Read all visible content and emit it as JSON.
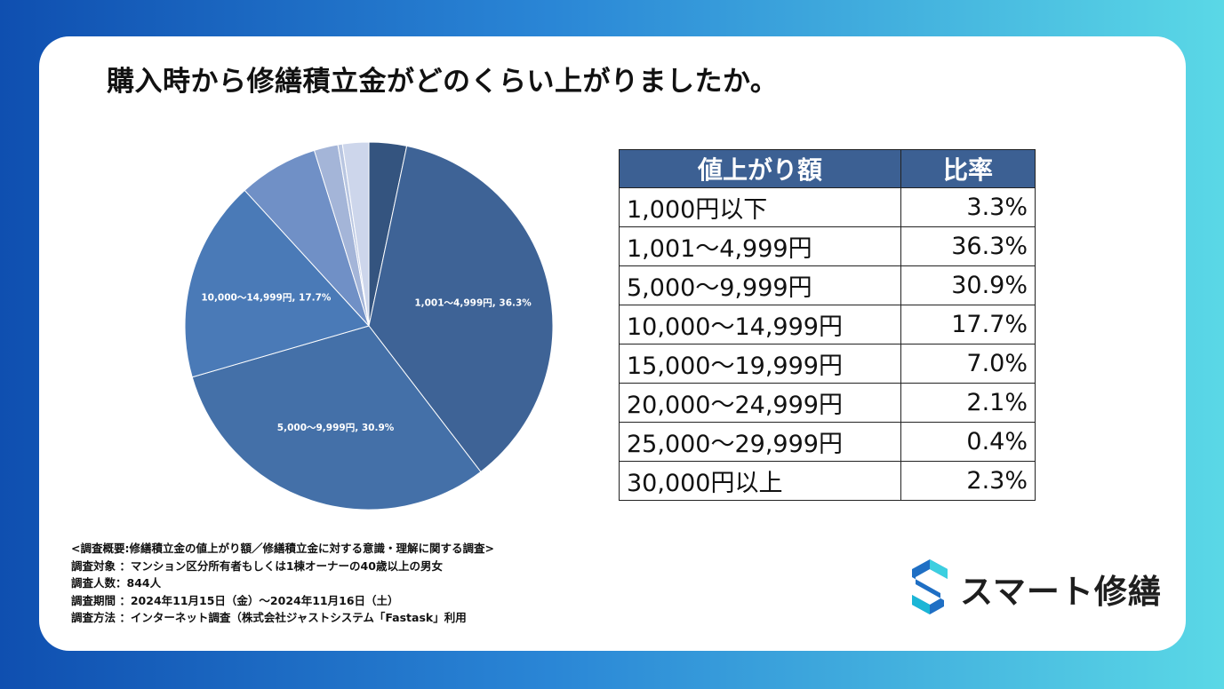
{
  "title": "購入時から修繕積立金がどのくらい上がりましたか。",
  "chart_data": {
    "type": "pie",
    "title": "購入時から修繕積立金がどのくらい上がりましたか。",
    "categories": [
      "1,000円以下",
      "1,001～4,999円",
      "5,000～9,999円",
      "10,000～14,999円",
      "15,000～19,999円",
      "20,000～24,999円",
      "25,000～29,999円",
      "30,000円以上"
    ],
    "values": [
      3.3,
      36.3,
      30.9,
      17.7,
      7.0,
      2.1,
      0.4,
      2.3
    ],
    "slice_labels": [
      "",
      "1,001～4,999円, 36.3%",
      "5,000～9,999円, 30.9%",
      "10,000～14,999円, 17.7%",
      "",
      "",
      "",
      ""
    ],
    "colors": [
      "#34547f",
      "#3e6396",
      "#4470a8",
      "#4a7ab7",
      "#7090c6",
      "#a4b5d8",
      "#b9c6e1",
      "#cdd6eb"
    ]
  },
  "table": {
    "headers": [
      "値上がり額",
      "比率"
    ],
    "rows": [
      {
        "range": "1,000円以下",
        "ratio": "3.3%"
      },
      {
        "range": "1,001～4,999円",
        "ratio": "36.3%"
      },
      {
        "range": "5,000～9,999円",
        "ratio": "30.9%"
      },
      {
        "range": "10,000～14,999円",
        "ratio": "17.7%"
      },
      {
        "range": "15,000～19,999円",
        "ratio": "7.0%"
      },
      {
        "range": "20,000～24,999円",
        "ratio": "2.1%"
      },
      {
        "range": "25,000～29,999円",
        "ratio": "0.4%"
      },
      {
        "range": "30,000円以上",
        "ratio": "2.3%"
      }
    ]
  },
  "notes": [
    "<調査概要:修繕積立金の値上がり額／修繕積立金に対する意識・理解に関する調査>",
    "調査対象 ：マンション区分所有者もしくは1棟オーナーの40歳以上の男女",
    "調査人数：844人",
    "調査期間 ：2024年11月15日（金）～2024年11月16日（土）",
    "調査方法 ：インターネット調査（株式会社ジャストシステム「Fastask」利用"
  ],
  "logo": {
    "text": "スマート修繕",
    "icon": "s-logo-icon"
  }
}
